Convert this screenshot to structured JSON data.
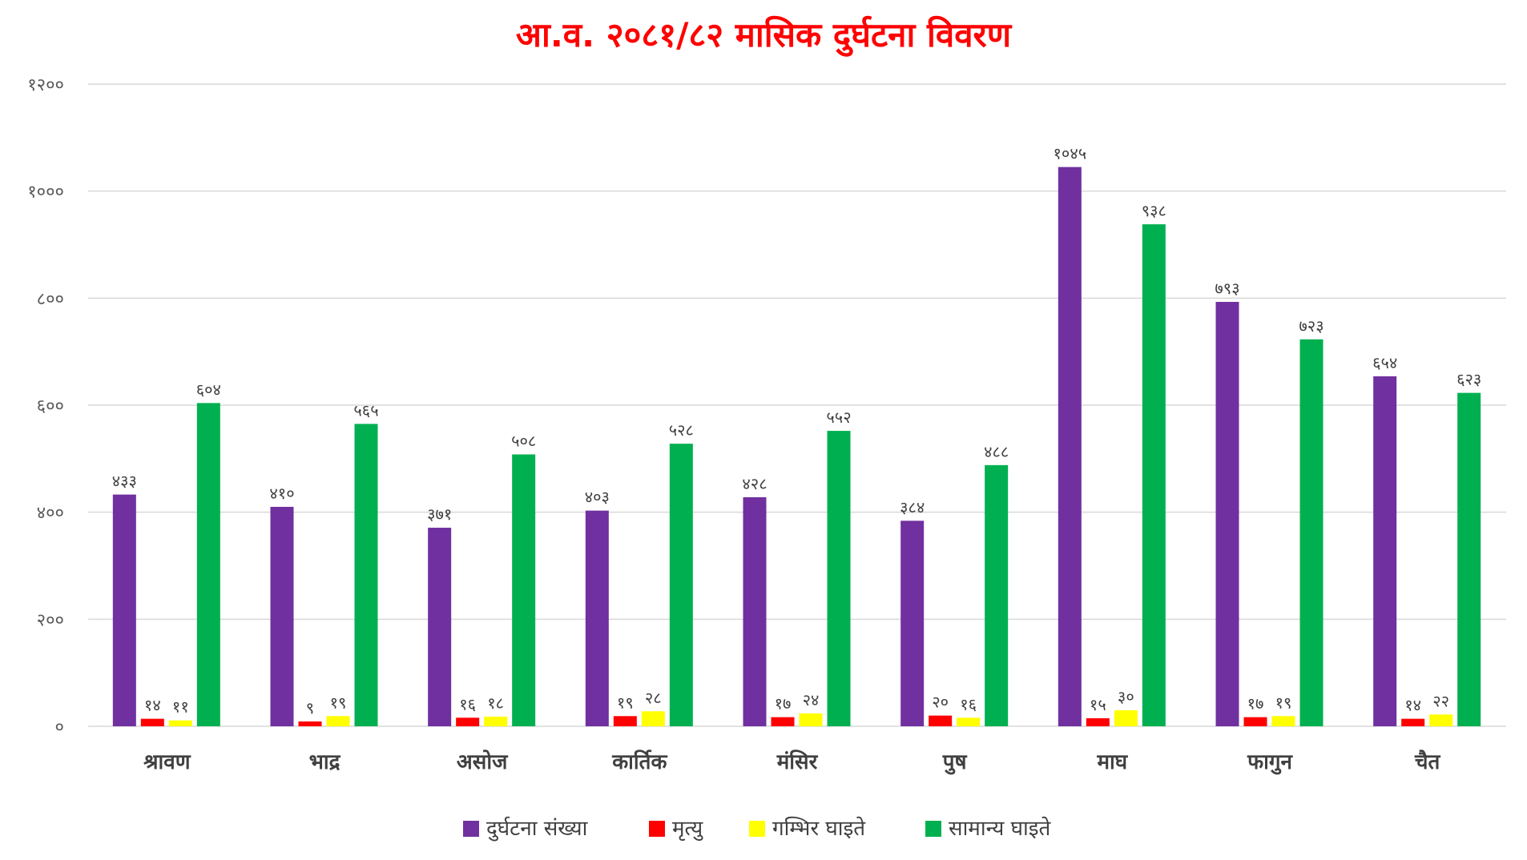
{
  "chart_data": {
    "type": "bar",
    "title": "आ.व. २०८१/८२ मासिक दुर्घटना विवरण",
    "xlabel": "",
    "ylabel": "",
    "ylim": [
      0,
      1200
    ],
    "yticks": [
      0,
      200,
      400,
      600,
      800,
      1000,
      1200
    ],
    "ytick_labels": [
      "०",
      "२००",
      "४००",
      "६००",
      "८००",
      "१०००",
      "१२००"
    ],
    "grid": true,
    "legend_position": "bottom",
    "categories": [
      "श्रावण",
      "भाद्र",
      "असोज",
      "कार्तिक",
      "मंसिर",
      "पुष",
      "माघ",
      "फागुन",
      "चैत"
    ],
    "series": [
      {
        "name": "दुर्घटना संख्या",
        "color": "#7030A0",
        "values": [
          433,
          410,
          371,
          403,
          428,
          384,
          1045,
          793,
          654
        ],
        "labels": [
          "४३३",
          "४१०",
          "३७१",
          "४०३",
          "४२८",
          "३८४",
          "१०४५",
          "७९३",
          "६५४"
        ]
      },
      {
        "name": "मृत्यु",
        "color": "#FF0000",
        "values": [
          14,
          9,
          16,
          19,
          17,
          20,
          15,
          17,
          14
        ],
        "labels": [
          "१४",
          "९",
          "१६",
          "१९",
          "१७",
          "२०",
          "१५",
          "१७",
          "१४"
        ]
      },
      {
        "name": "गम्भिर घाइते",
        "color": "#FFFF00",
        "values": [
          11,
          19,
          18,
          28,
          24,
          16,
          30,
          19,
          22
        ],
        "labels": [
          "११",
          "१९",
          "१८",
          "२८",
          "२४",
          "१६",
          "३०",
          "१९",
          "२२"
        ]
      },
      {
        "name": "सामान्य घाइते",
        "color": "#00B050",
        "values": [
          604,
          565,
          508,
          528,
          552,
          488,
          938,
          723,
          623
        ],
        "labels": [
          "६०४",
          "५६५",
          "५०८",
          "५२८",
          "५५२",
          "४८८",
          "९३८",
          "७२३",
          "६२३"
        ]
      }
    ],
    "title_color": "#FF0000",
    "grid_color": "#D9D9D9"
  }
}
